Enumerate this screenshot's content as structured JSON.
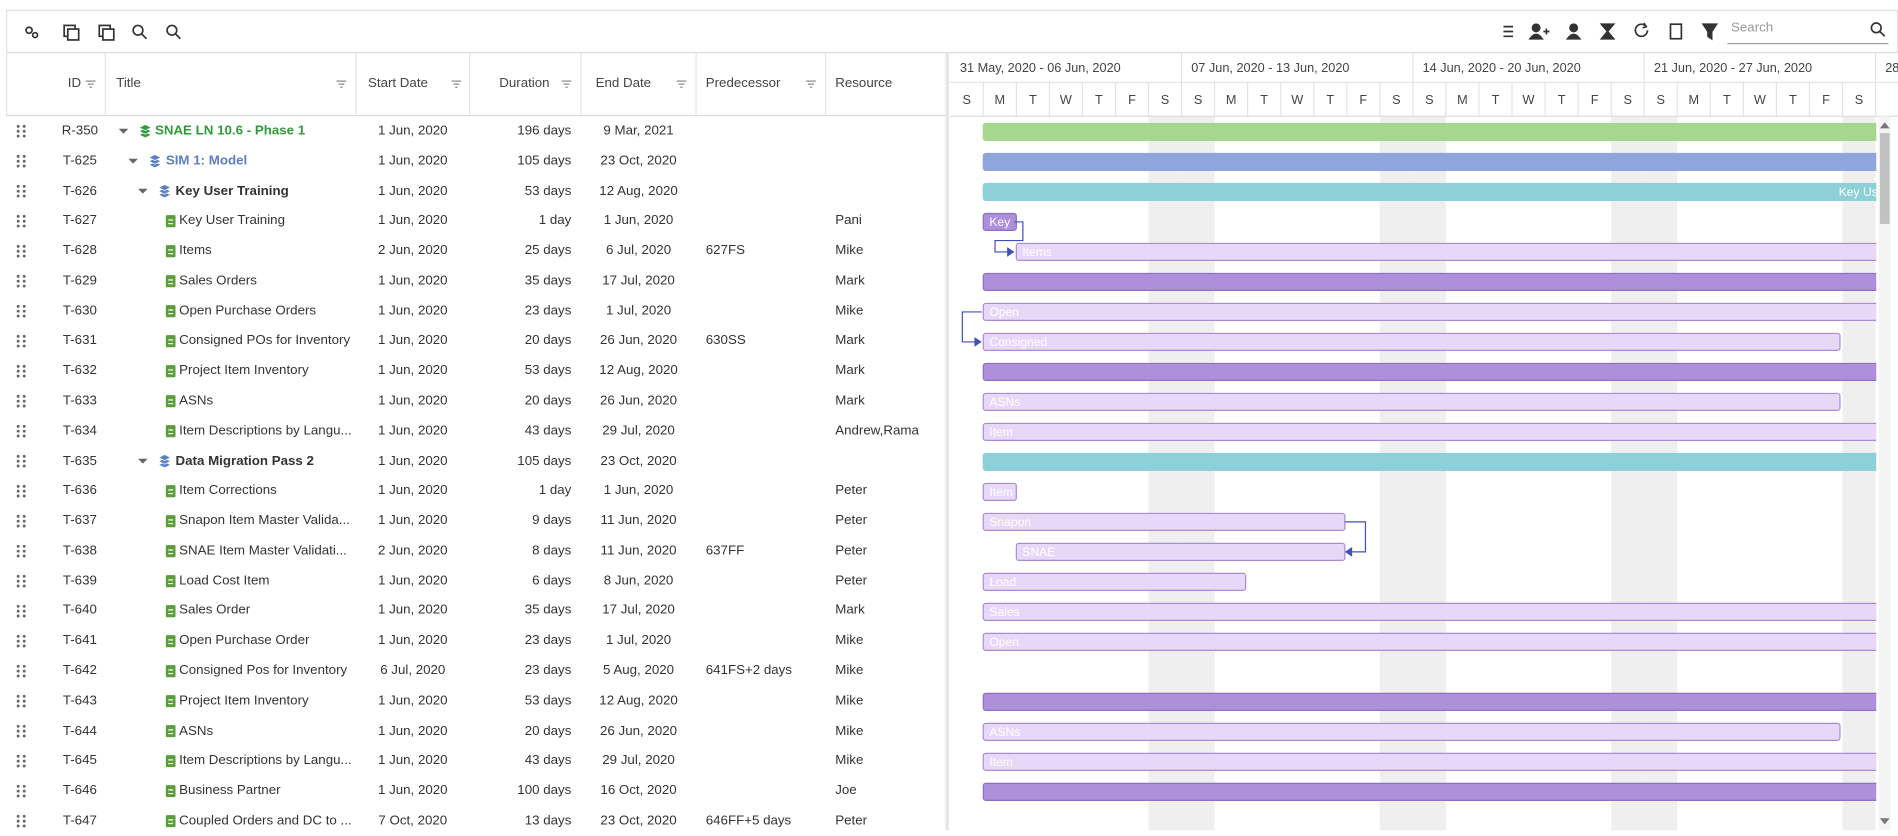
{
  "toolbar": {
    "search_placeholder": "Search"
  },
  "table": {
    "columns": [
      "ID",
      "Title",
      "Start Date",
      "Duration",
      "End Date",
      "Predecessor",
      "Resource"
    ],
    "rows": [
      {
        "id": "R-350",
        "title": "SNAE LN 10.6 - Phase 1",
        "start": "1 Jun, 2020",
        "duration": "196 days",
        "end": "9 Mar, 2021"
      },
      {
        "id": "T-625",
        "title": "SIM 1: Model",
        "start": "1 Jun, 2020",
        "duration": "105 days",
        "end": "23 Oct, 2020"
      },
      {
        "id": "T-626",
        "title": "Key User Training",
        "start": "1 Jun, 2020",
        "duration": "53 days",
        "end": "12 Aug, 2020"
      },
      {
        "id": "T-627",
        "title": "Key User Training",
        "start": "1 Jun, 2020",
        "duration": "1 day",
        "end": "1 Jun, 2020",
        "resource": "Pani"
      },
      {
        "id": "T-628",
        "title": "Items",
        "start": "2 Jun, 2020",
        "duration": "25 days",
        "end": "6 Jul, 2020",
        "predecessor": "627FS",
        "resource": "Mike"
      },
      {
        "id": "T-629",
        "title": "Sales Orders",
        "start": "1 Jun, 2020",
        "duration": "35 days",
        "end": "17 Jul, 2020",
        "resource": "Mark"
      },
      {
        "id": "T-630",
        "title": "Open Purchase Orders",
        "start": "1 Jun, 2020",
        "duration": "23 days",
        "end": "1 Jul, 2020",
        "resource": "Mike"
      },
      {
        "id": "T-631",
        "title": "Consigned POs for Inventory",
        "start": "1 Jun, 2020",
        "duration": "20 days",
        "end": "26 Jun, 2020",
        "predecessor": "630SS",
        "resource": "Mark"
      },
      {
        "id": "T-632",
        "title": "Project Item Inventory",
        "start": "1 Jun, 2020",
        "duration": "53 days",
        "end": "12 Aug, 2020",
        "resource": "Mark"
      },
      {
        "id": "T-633",
        "title": "ASNs",
        "start": "1 Jun, 2020",
        "duration": "20 days",
        "end": "26 Jun, 2020",
        "resource": "Mark"
      },
      {
        "id": "T-634",
        "title": "Item Descriptions by Langu...",
        "start": "1 Jun, 2020",
        "duration": "43 days",
        "end": "29 Jul, 2020",
        "resource": "Andrew,Rama"
      },
      {
        "id": "T-635",
        "title": "Data Migration Pass 2",
        "start": "1 Jun, 2020",
        "duration": "105 days",
        "end": "23 Oct, 2020"
      },
      {
        "id": "T-636",
        "title": "Item Corrections",
        "start": "1 Jun, 2020",
        "duration": "1 day",
        "end": "1 Jun, 2020",
        "resource": "Peter"
      },
      {
        "id": "T-637",
        "title": "Snapon Item Master Valida...",
        "start": "1 Jun, 2020",
        "duration": "9 days",
        "end": "11 Jun, 2020",
        "resource": "Peter"
      },
      {
        "id": "T-638",
        "title": "SNAE Item Master Validati...",
        "start": "2 Jun, 2020",
        "duration": "8 days",
        "end": "11 Jun, 2020",
        "predecessor": "637FF",
        "resource": "Peter"
      },
      {
        "id": "T-639",
        "title": "Load Cost Item",
        "start": "1 Jun, 2020",
        "duration": "6 days",
        "end": "8 Jun, 2020",
        "resource": "Peter"
      },
      {
        "id": "T-640",
        "title": "Sales Order",
        "start": "1 Jun, 2020",
        "duration": "35 days",
        "end": "17 Jul, 2020",
        "resource": "Mark"
      },
      {
        "id": "T-641",
        "title": "Open Purchase Order",
        "start": "1 Jun, 2020",
        "duration": "23 days",
        "end": "1 Jul, 2020",
        "resource": "Mike"
      },
      {
        "id": "T-642",
        "title": "Consigned Pos for Inventory",
        "start": "6 Jul, 2020",
        "duration": "23 days",
        "end": "5 Aug, 2020",
        "predecessor": "641FS+2 days",
        "resource": "Mike"
      },
      {
        "id": "T-643",
        "title": "Project Item Inventory",
        "start": "1 Jun, 2020",
        "duration": "53 days",
        "end": "12 Aug, 2020",
        "resource": "Mike"
      },
      {
        "id": "T-644",
        "title": "ASNs",
        "start": "1 Jun, 2020",
        "duration": "20 days",
        "end": "26 Jun, 2020",
        "resource": "Mike"
      },
      {
        "id": "T-645",
        "title": "Item Descriptions by Langu...",
        "start": "1 Jun, 2020",
        "duration": "43 days",
        "end": "29 Jul, 2020",
        "resource": "Mike"
      },
      {
        "id": "T-646",
        "title": "Business Partner",
        "start": "1 Jun, 2020",
        "duration": "100 days",
        "end": "16 Oct, 2020",
        "resource": "Joe"
      },
      {
        "id": "T-647",
        "title": "Coupled Orders and DC to ...",
        "start": "7 Oct, 2020",
        "duration": "13 days",
        "end": "23 Oct, 2020",
        "predecessor": "646FF+5 days",
        "resource": "Peter"
      }
    ]
  },
  "timeline": {
    "weeks": [
      {
        "label": "31 May, 2020 - 06 Jun, 2020",
        "days": [
          "S",
          "M",
          "T",
          "W",
          "T",
          "F",
          "S"
        ]
      },
      {
        "label": "07 Jun, 2020 - 13 Jun, 2020",
        "days": [
          "S",
          "M",
          "T",
          "W",
          "T",
          "F",
          "S"
        ]
      },
      {
        "label": "14 Jun, 2020 - 20 Jun, 2020",
        "days": [
          "S",
          "M",
          "T",
          "W",
          "T",
          "F",
          "S"
        ]
      },
      {
        "label": "21 Jun, 2020 - 27 Jun, 2020",
        "days": [
          "S",
          "M",
          "T",
          "W",
          "T",
          "F",
          "S"
        ]
      }
    ],
    "next_week_partial": "28",
    "bar_labels": [
      "Key Us",
      "Key",
      "Items",
      "Open",
      "Consigned",
      "ASNs",
      "Item",
      "Item",
      "Snapon",
      "SNAE",
      "Load",
      "Sales",
      "Open",
      "ASNs",
      "Item"
    ]
  }
}
